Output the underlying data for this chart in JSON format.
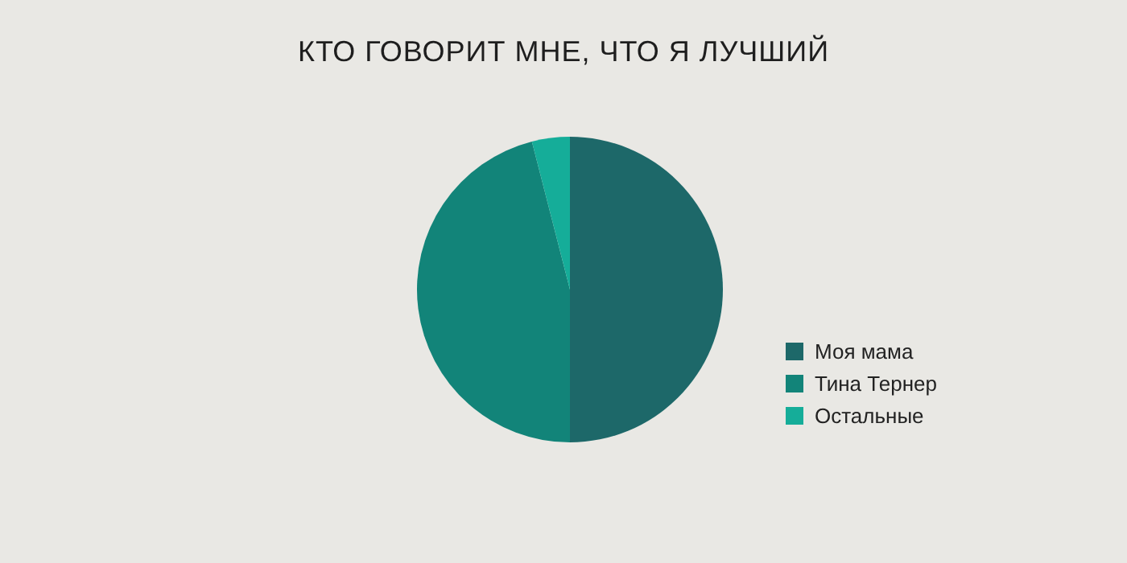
{
  "chart_data": {
    "type": "pie",
    "title": "КТО ГОВОРИТ МНЕ, ЧТО Я ЛУЧШИЙ",
    "categories": [
      "Моя мама",
      "Тина Тернер",
      "Остальные"
    ],
    "values": [
      50,
      46,
      4
    ],
    "colors": [
      "#1d6869",
      "#128479",
      "#15ad99"
    ],
    "legend": "bottom right"
  }
}
